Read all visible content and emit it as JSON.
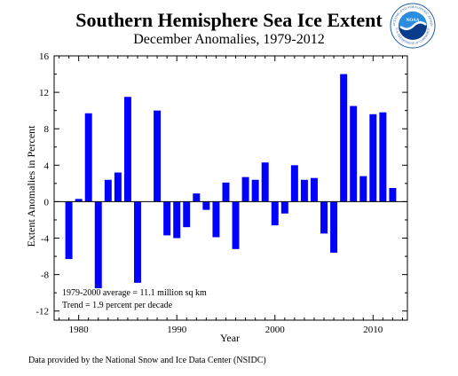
{
  "chart_data": {
    "type": "bar",
    "title": "Southern Hemisphere Sea Ice Extent",
    "subtitle": "December Anomalies, 1979-2012",
    "xlabel": "Year",
    "ylabel": "Extent Anomalies in Percent",
    "ylim": [
      -13,
      16
    ],
    "xlim": [
      1977.5,
      2013.5
    ],
    "yticks": [
      -12,
      -8,
      -4,
      0,
      4,
      8,
      12,
      16
    ],
    "xticks": [
      1980,
      1990,
      2000,
      2010
    ],
    "grid": false,
    "bar_color": "#0000ff",
    "years": [
      1979,
      1980,
      1981,
      1982,
      1983,
      1984,
      1985,
      1986,
      1987,
      1988,
      1989,
      1990,
      1991,
      1992,
      1993,
      1994,
      1995,
      1996,
      1997,
      1998,
      1999,
      2000,
      2001,
      2002,
      2003,
      2004,
      2005,
      2006,
      2007,
      2008,
      2009,
      2010,
      2011,
      2012
    ],
    "values": [
      -6.3,
      0.3,
      9.7,
      -9.5,
      2.4,
      3.2,
      11.5,
      -8.9,
      null,
      10.0,
      -3.7,
      -4.0,
      -2.8,
      0.9,
      -0.9,
      -3.9,
      2.1,
      -5.2,
      2.7,
      2.4,
      4.3,
      -2.6,
      -1.3,
      4.0,
      2.4,
      2.6,
      -3.5,
      -5.6,
      14.0,
      10.5,
      2.8,
      9.6,
      9.8,
      1.5
    ],
    "annotations": [
      "1979-2000 average = 11.1 million sq km",
      "Trend =   1.9 percent per decade"
    ]
  },
  "credit": "Data provided by the National Snow and Ice Data Center (NSIDC)",
  "logo": {
    "text": "NOAA",
    "ring_top": "NATIONAL OCEANIC AND ATMOSPHERIC ADMINISTRATION",
    "ring_bottom": "U.S. DEPARTMENT OF COMMERCE"
  }
}
